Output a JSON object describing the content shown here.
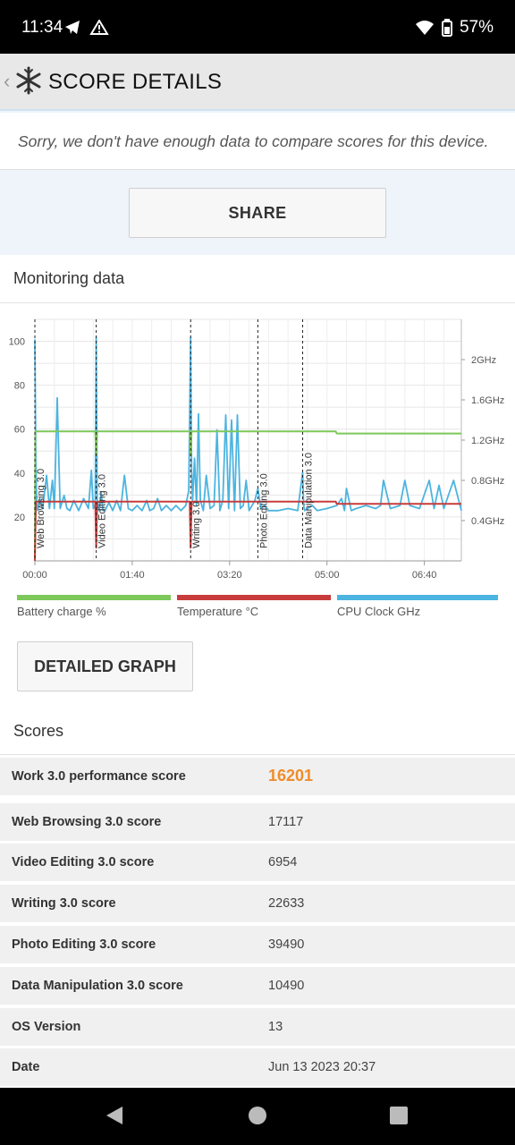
{
  "status_bar": {
    "time": "11:34",
    "battery": "57%"
  },
  "app_bar": {
    "title": "SCORE DETAILS"
  },
  "notice": {
    "text": "Sorry, we don't have enough data to compare scores for this device."
  },
  "share_label": "SHARE",
  "monitoring": {
    "title": "Monitoring data",
    "legend": [
      {
        "label": "Battery charge %",
        "color": "#7cc85a"
      },
      {
        "label": "Temperature °C",
        "color": "#c83c3c"
      },
      {
        "label": "CPU Clock GHz",
        "color": "#4cb4e0"
      }
    ]
  },
  "detailed_graph_label": "DETAILED GRAPH",
  "scores_title": "Scores",
  "scores": [
    {
      "label": "Work 3.0 performance score",
      "value": "16201"
    },
    {
      "label": "Web Browsing 3.0 score",
      "value": "17117"
    },
    {
      "label": "Video Editing 3.0 score",
      "value": "6954"
    },
    {
      "label": "Writing 3.0 score",
      "value": "22633"
    },
    {
      "label": "Photo Editing 3.0 score",
      "value": "39490"
    },
    {
      "label": "Data Manipulation 3.0 score",
      "value": "10490"
    },
    {
      "label": "OS Version",
      "value": "13"
    },
    {
      "label": "Date",
      "value": "Jun 13 2023 20:37"
    }
  ],
  "chart_data": {
    "type": "line",
    "x_ticks": [
      "00:00",
      "01:40",
      "03:20",
      "05:00",
      "06:40"
    ],
    "x_tick_minutes": [
      0,
      100,
      200,
      300,
      400
    ],
    "xlim": [
      0,
      438
    ],
    "y_left_ticks": [
      20,
      40,
      60,
      80,
      100
    ],
    "ylim_left": [
      0,
      110
    ],
    "y_right_ticks": [
      "0.4GHz",
      "0.8GHz",
      "1.2GHz",
      "1.6GHz",
      "2GHz"
    ],
    "y_right_values": [
      0.4,
      0.8,
      1.2,
      1.6,
      2.0
    ],
    "ylim_right": [
      0,
      2.4
    ],
    "markers": [
      {
        "label": "Web Browsing 3.0",
        "x": 0
      },
      {
        "label": "Video Editing 3.0",
        "x": 63
      },
      {
        "label": "Writing 3.0",
        "x": 160
      },
      {
        "label": "Photo Editing 3.0",
        "x": 229
      },
      {
        "label": "Data Manipulation 3.0",
        "x": 275
      }
    ],
    "series": [
      {
        "name": "Battery charge %",
        "axis": "left",
        "x": [
          0,
          0.5,
          1,
          62,
          63,
          64,
          159,
          160,
          161,
          309,
          310,
          438
        ],
        "y": [
          0,
          59,
          59,
          59,
          48,
          59,
          59,
          48,
          59,
          59,
          58,
          58
        ]
      },
      {
        "name": "Temperature °C",
        "axis": "left",
        "x": [
          0,
          1,
          62,
          63,
          64,
          159,
          160,
          161,
          309,
          310,
          438
        ],
        "y": [
          0,
          27,
          27,
          6,
          27,
          27,
          6,
          27,
          27,
          26,
          26
        ]
      },
      {
        "name": "CPU Clock GHz",
        "axis": "right",
        "x": [
          0,
          1,
          2,
          3,
          5,
          8,
          12,
          15,
          18,
          20,
          23,
          26,
          30,
          33,
          36,
          40,
          45,
          50,
          55,
          58,
          60,
          62,
          63,
          64,
          66,
          68,
          70,
          72,
          76,
          80,
          84,
          88,
          92,
          96,
          100,
          105,
          110,
          115,
          118,
          122,
          126,
          130,
          135,
          140,
          145,
          150,
          155,
          158,
          160,
          161,
          162,
          164,
          166,
          168,
          170,
          173,
          176,
          180,
          184,
          187,
          190,
          193,
          196,
          199,
          202,
          205,
          208,
          211,
          214,
          217,
          220,
          223,
          226,
          229,
          232,
          236,
          240,
          250,
          260,
          270,
          275,
          276,
          277,
          280,
          285,
          290,
          300,
          310,
          315,
          318,
          320,
          325,
          330,
          340,
          350,
          355,
          358,
          365,
          375,
          380,
          385,
          395,
          405,
          410,
          415,
          420,
          430,
          438
        ],
        "y": [
          2.2,
          1.0,
          0.55,
          0.5,
          0.62,
          0.52,
          0.85,
          0.52,
          0.8,
          0.52,
          1.62,
          0.52,
          0.65,
          0.52,
          0.5,
          0.6,
          0.5,
          0.62,
          0.52,
          0.9,
          0.52,
          0.56,
          2.22,
          0.6,
          0.5,
          0.68,
          0.5,
          0.5,
          0.58,
          0.5,
          0.6,
          0.5,
          0.85,
          0.52,
          0.5,
          0.55,
          0.5,
          0.6,
          0.5,
          0.52,
          0.62,
          0.5,
          0.55,
          0.5,
          0.55,
          0.5,
          0.55,
          0.7,
          2.22,
          0.9,
          0.6,
          1.02,
          0.55,
          1.46,
          0.6,
          0.5,
          0.85,
          0.52,
          0.55,
          1.3,
          0.5,
          0.6,
          1.45,
          0.52,
          1.4,
          0.5,
          1.45,
          0.52,
          0.55,
          0.8,
          0.5,
          0.55,
          0.6,
          0.72,
          0.52,
          0.55,
          0.5,
          0.5,
          0.52,
          0.5,
          0.88,
          0.55,
          0.5,
          0.52,
          0.55,
          0.5,
          0.52,
          0.55,
          0.62,
          0.5,
          0.72,
          0.5,
          0.52,
          0.55,
          0.52,
          0.55,
          0.8,
          0.52,
          0.55,
          0.8,
          0.55,
          0.52,
          0.8,
          0.52,
          0.75,
          0.52,
          0.8,
          0.5
        ]
      }
    ]
  }
}
